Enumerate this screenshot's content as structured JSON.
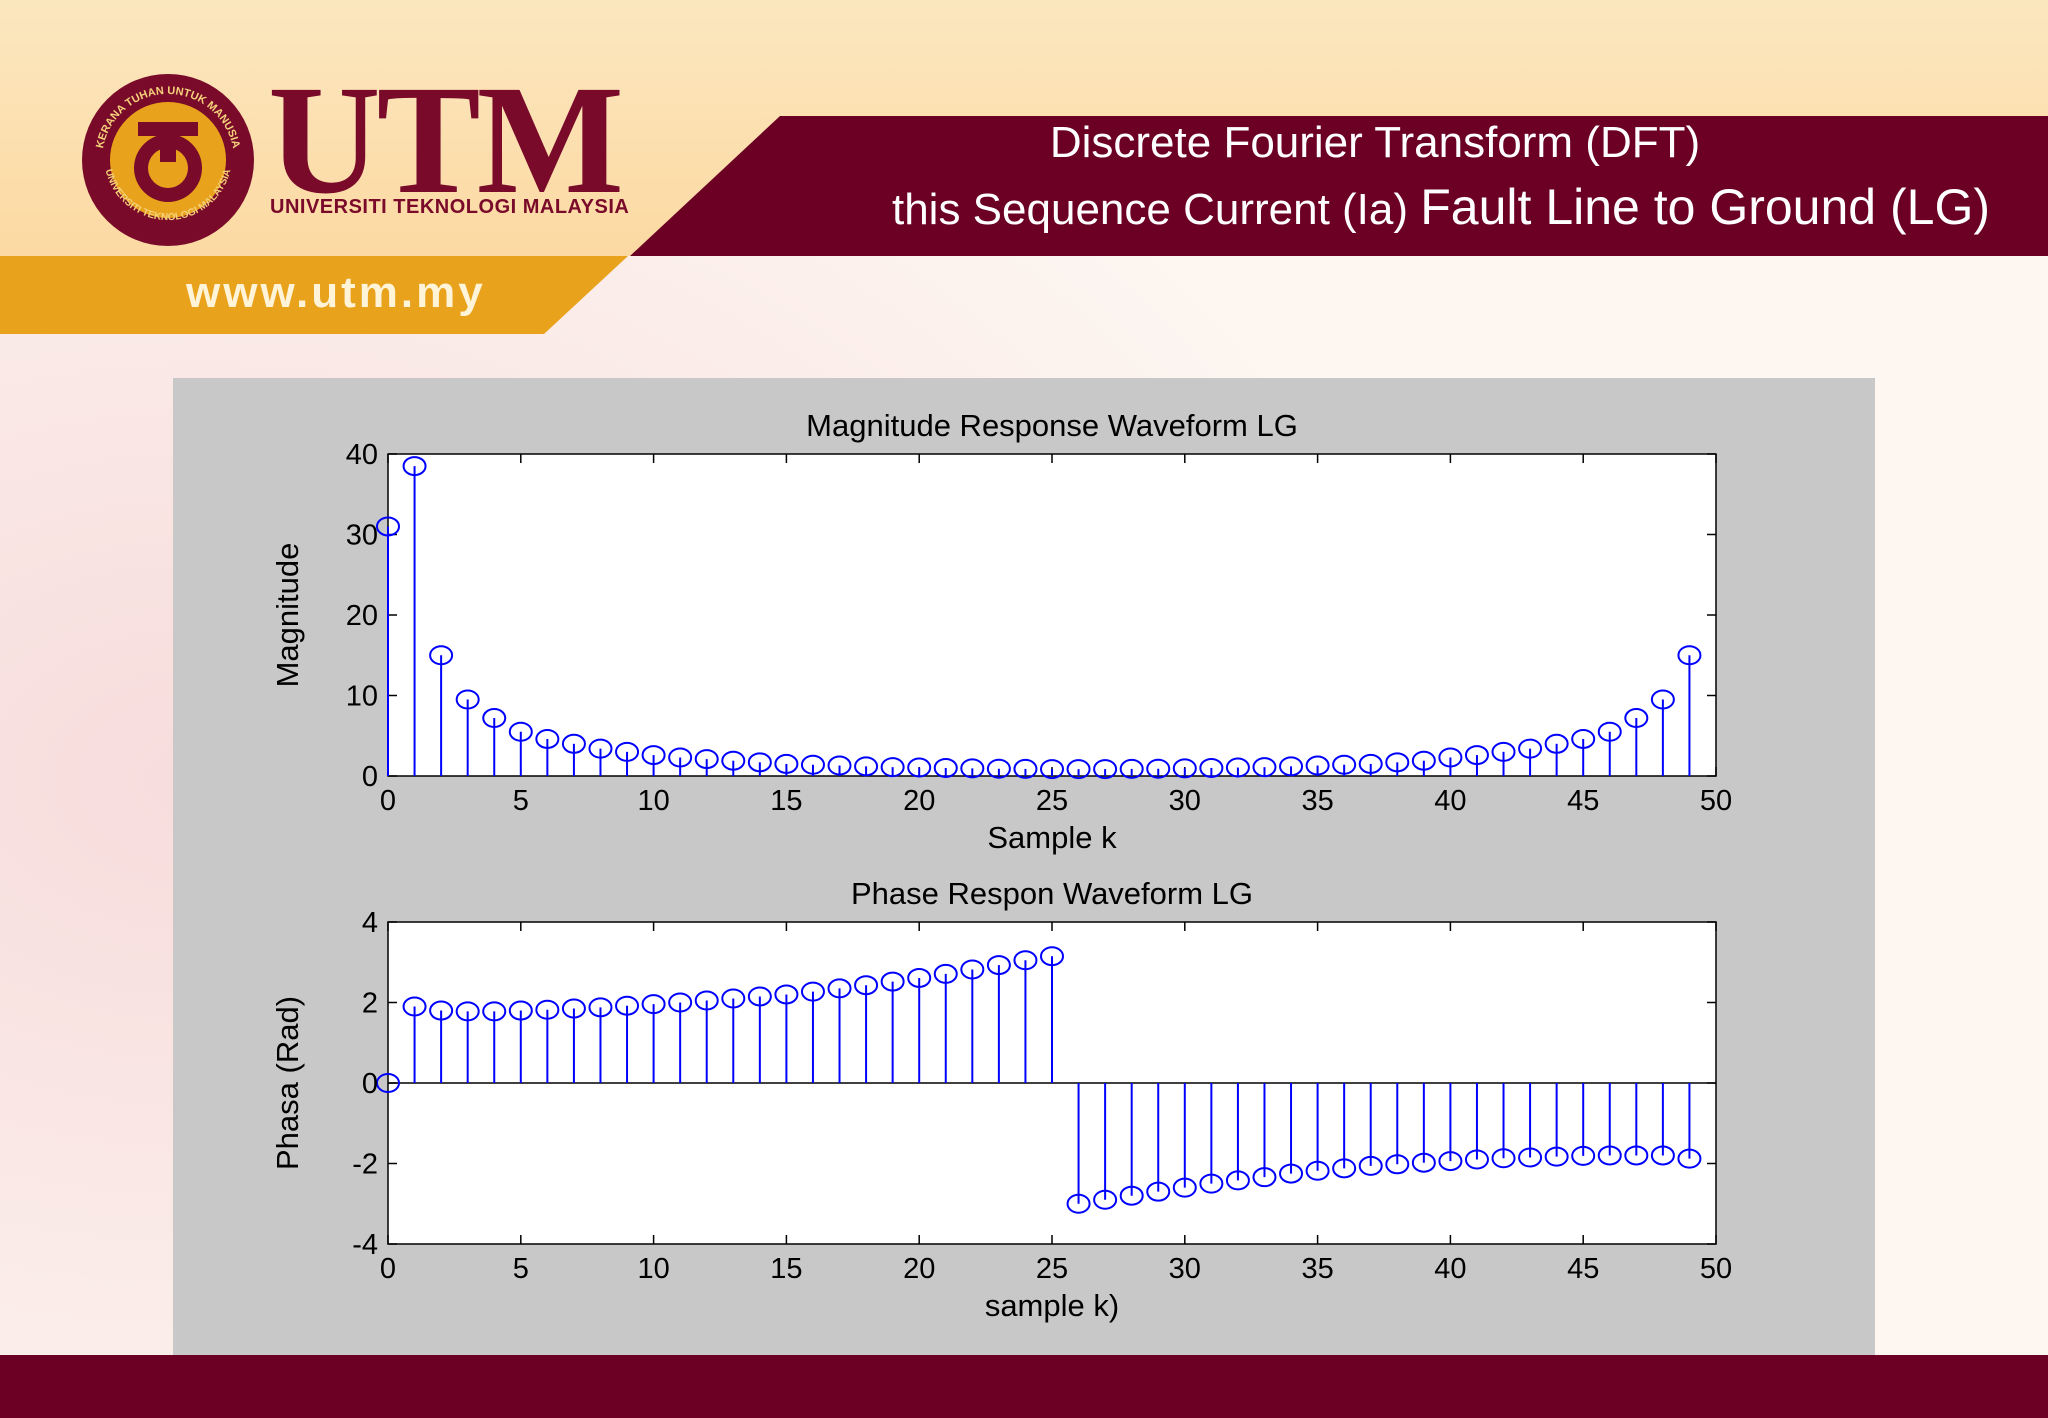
{
  "slide": {
    "logo_text": "UTM",
    "logo_subtitle": "UNIVERSITI TEKNOLOGI MALAYSIA",
    "seal_text_top": "KERANA TUHAN UNTUK MANUSIA",
    "seal_text_bottom": "UNIVERSITI TEKNOLOGI MALAYSIA",
    "website": "www.utm.my",
    "title_line1": "Discrete Fourier Transform (DFT)",
    "title_line2_part1": "this Sequence Current  (Ia)",
    "title_line2_part2": "Fault Line to Ground (LG)"
  },
  "colors": {
    "maroon": "#6b0024",
    "gold": "#e8a21c",
    "panel_gray": "#c8c8c8",
    "stem_blue": "#0000ff"
  },
  "chart_data": [
    {
      "type": "stem",
      "title": "Magnitude Response Waveform LG",
      "xlabel": "Sample k",
      "ylabel": "Magnitude",
      "xlim": [
        0,
        50
      ],
      "ylim": [
        0,
        40
      ],
      "xticks": [
        0,
        5,
        10,
        15,
        20,
        25,
        30,
        35,
        40,
        45,
        50
      ],
      "yticks": [
        0,
        10,
        20,
        30,
        40
      ],
      "grid": false,
      "x": [
        0,
        1,
        2,
        3,
        4,
        5,
        6,
        7,
        8,
        9,
        10,
        11,
        12,
        13,
        14,
        15,
        16,
        17,
        18,
        19,
        20,
        21,
        22,
        23,
        24,
        25,
        26,
        27,
        28,
        29,
        30,
        31,
        32,
        33,
        34,
        35,
        36,
        37,
        38,
        39,
        40,
        41,
        42,
        43,
        44,
        45,
        46,
        47,
        48,
        49
      ],
      "values": [
        31.0,
        38.5,
        15.0,
        9.5,
        7.2,
        5.5,
        4.6,
        4.0,
        3.4,
        3.0,
        2.6,
        2.3,
        2.1,
        1.9,
        1.7,
        1.5,
        1.4,
        1.3,
        1.2,
        1.1,
        1.05,
        1.0,
        0.95,
        0.9,
        0.88,
        0.86,
        0.85,
        0.86,
        0.88,
        0.9,
        0.95,
        1.0,
        1.05,
        1.1,
        1.2,
        1.3,
        1.4,
        1.5,
        1.7,
        1.9,
        2.3,
        2.6,
        3.0,
        3.4,
        4.0,
        4.6,
        5.5,
        7.2,
        9.5,
        15.0
      ]
    },
    {
      "type": "stem",
      "title": "Phase Respon Waveform LG",
      "xlabel": "sample k)",
      "ylabel": "Phasa (Rad)",
      "xlim": [
        0,
        50
      ],
      "ylim": [
        -4,
        4
      ],
      "xticks": [
        0,
        5,
        10,
        15,
        20,
        25,
        30,
        35,
        40,
        45,
        50
      ],
      "yticks": [
        -4,
        -2,
        0,
        2,
        4
      ],
      "grid": false,
      "x": [
        0,
        1,
        2,
        3,
        4,
        5,
        6,
        7,
        8,
        9,
        10,
        11,
        12,
        13,
        14,
        15,
        16,
        17,
        18,
        19,
        20,
        21,
        22,
        23,
        24,
        25,
        26,
        27,
        28,
        29,
        30,
        31,
        32,
        33,
        34,
        35,
        36,
        37,
        38,
        39,
        40,
        41,
        42,
        43,
        44,
        45,
        46,
        47,
        48,
        49
      ],
      "values": [
        0,
        1.9,
        1.8,
        1.78,
        1.78,
        1.8,
        1.82,
        1.85,
        1.88,
        1.92,
        1.96,
        2.0,
        2.05,
        2.1,
        2.15,
        2.2,
        2.27,
        2.35,
        2.43,
        2.52,
        2.61,
        2.71,
        2.82,
        2.93,
        3.05,
        3.15,
        -3.0,
        -2.9,
        -2.8,
        -2.7,
        -2.6,
        -2.5,
        -2.42,
        -2.34,
        -2.25,
        -2.18,
        -2.12,
        -2.06,
        -2.02,
        -1.98,
        -1.94,
        -1.9,
        -1.87,
        -1.85,
        -1.83,
        -1.81,
        -1.8,
        -1.8,
        -1.8,
        -1.88
      ]
    }
  ]
}
